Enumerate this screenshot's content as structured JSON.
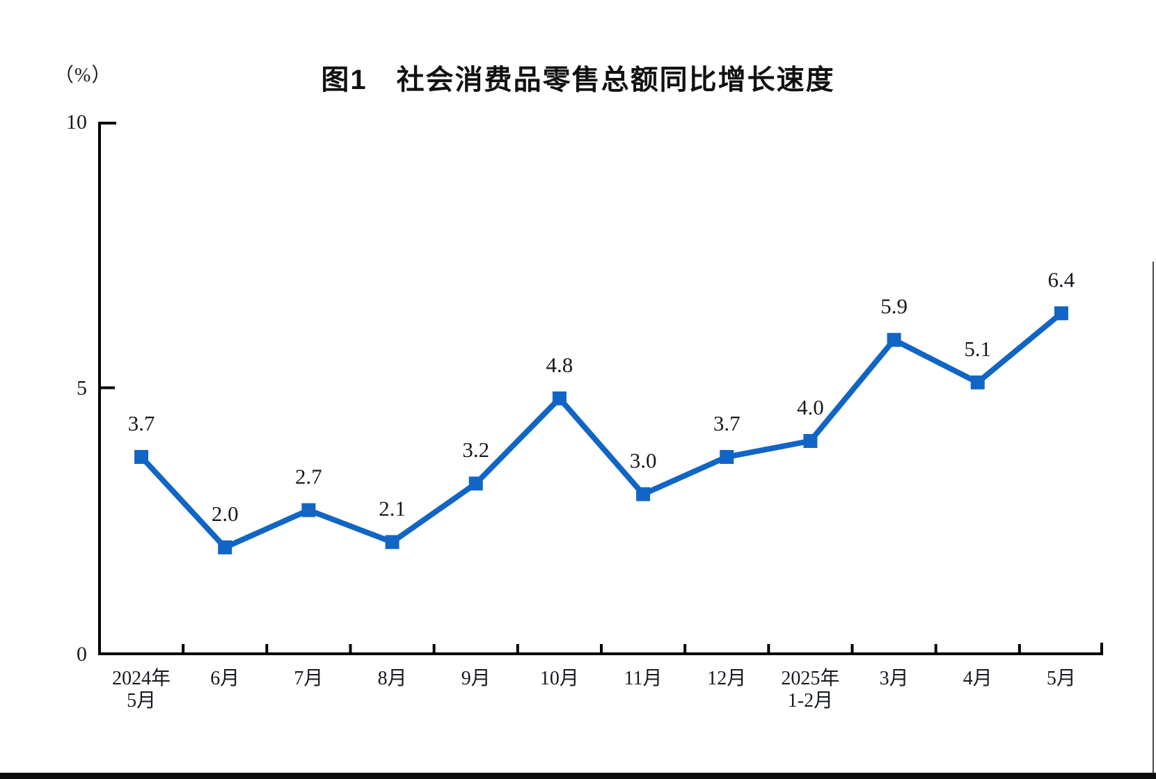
{
  "figure": {
    "title": "图1　社会消费品零售总额同比增长速度",
    "unit_label": "（%）"
  },
  "chart_data": {
    "type": "line",
    "title": "图1 社会消费品零售总额同比增长速度",
    "ylabel": "（%）",
    "xlabel": "",
    "categories": [
      [
        "2024年",
        "5月"
      ],
      [
        "6月"
      ],
      [
        "7月"
      ],
      [
        "8月"
      ],
      [
        "9月"
      ],
      [
        "10月"
      ],
      [
        "11月"
      ],
      [
        "12月"
      ],
      [
        "2025年",
        "1-2月"
      ],
      [
        "3月"
      ],
      [
        "4月"
      ],
      [
        "5月"
      ]
    ],
    "values": [
      3.7,
      2.0,
      2.7,
      2.1,
      3.2,
      4.8,
      3.0,
      3.7,
      4.0,
      5.9,
      5.1,
      6.4
    ],
    "data_labels": [
      "3.7",
      "2.0",
      "2.7",
      "2.1",
      "3.2",
      "4.8",
      "3.0",
      "3.7",
      "4.0",
      "5.9",
      "5.1",
      "6.4"
    ],
    "y_ticks": [
      0,
      5,
      10
    ],
    "y_tick_labels": [
      "0",
      "5",
      "10"
    ],
    "ylim": [
      0,
      10
    ],
    "grid": false,
    "legend": "none",
    "marker": "square",
    "line_color": "#1165C5",
    "axis_color": "#000000",
    "text_color": "#15191f"
  },
  "page": {
    "bottom_bar_color": "#0d0d0d"
  }
}
